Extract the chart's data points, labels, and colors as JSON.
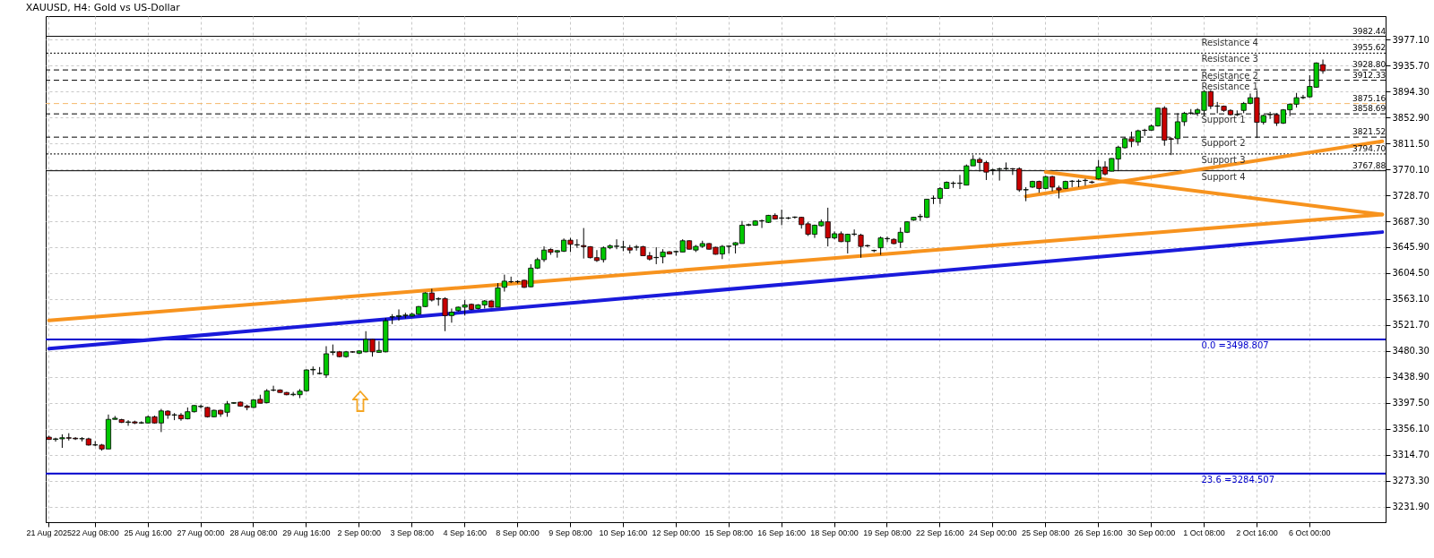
{
  "chart_data": {
    "type": "candlestick",
    "title": "XAUUSD, H4:  Gold vs US-Dollar",
    "categories": [
      "21 Aug 2025",
      null,
      null,
      null,
      null,
      null,
      null,
      "22 Aug 08:00",
      null,
      null,
      null,
      null,
      null,
      null,
      null,
      "25 Aug 16:00",
      null,
      null,
      null,
      null,
      null,
      null,
      null,
      "27 Aug 00:00",
      null,
      null,
      null,
      null,
      null,
      null,
      null,
      "28 Aug 08:00",
      null,
      null,
      null,
      null,
      null,
      null,
      null,
      "29 Aug 16:00",
      null,
      null,
      null,
      null,
      null,
      null,
      null,
      "2 Sep 00:00",
      null,
      null,
      null,
      null,
      null,
      null,
      null,
      "3 Sep 08:00",
      null,
      null,
      null,
      null,
      null,
      null,
      null,
      "4 Sep 16:00",
      null,
      null,
      null,
      null,
      null,
      null,
      null,
      "8 Sep 00:00",
      null,
      null,
      null,
      null,
      null,
      null,
      null,
      "9 Sep 08:00",
      null,
      null,
      null,
      null,
      null,
      null,
      null,
      "10 Sep 16:00",
      null,
      null,
      null,
      null,
      null,
      null,
      null,
      "12 Sep 00:00",
      null,
      null,
      null,
      null,
      null,
      null,
      null,
      "15 Sep 08:00",
      null,
      null,
      null,
      null,
      null,
      null,
      null,
      "16 Sep 16:00",
      null,
      null,
      null,
      null,
      null,
      null,
      null,
      "18 Sep 00:00",
      null,
      null,
      null,
      null,
      null,
      null,
      null,
      "19 Sep 08:00",
      null,
      null,
      null,
      null,
      null,
      null,
      null,
      "22 Sep 16:00",
      null,
      null,
      null,
      null,
      null,
      null,
      null,
      "24 Sep 00:00",
      null,
      null,
      null,
      null,
      null,
      null,
      null,
      "25 Sep 08:00",
      null,
      null,
      null,
      null,
      null,
      null,
      null,
      "26 Sep 16:00",
      null,
      null,
      null,
      null,
      null,
      null,
      null,
      "30 Sep 00:00",
      null,
      null,
      null,
      null,
      null,
      null,
      null,
      "1 Oct 08:00",
      null,
      null,
      null,
      null,
      null,
      null,
      null,
      "2 Oct 16:00",
      null,
      null,
      null,
      null,
      null,
      null,
      null,
      "6 Oct 00:00",
      null,
      null,
      null,
      null,
      null,
      null,
      null,
      null,
      null,
      null,
      null
    ],
    "ohlc": [
      [
        3342.7,
        3345.0,
        3338.2,
        3339.1
      ],
      [
        3339.1,
        3341.8,
        3335.5,
        3340.0
      ],
      [
        3340.0,
        3347.2,
        3325.6,
        3341.8
      ],
      [
        3341.8,
        3349.0,
        3337.3,
        3341.0
      ],
      [
        3341.0,
        3342.7,
        3338.2,
        3340.0
      ],
      [
        3340.0,
        3342.7,
        3335.9,
        3340.4
      ],
      [
        3340.0,
        3341.8,
        3329.2,
        3330.1
      ],
      [
        3330.1,
        3336.4,
        3328.3,
        3330.5
      ],
      [
        3330.1,
        3331.9,
        3321.1,
        3323.8
      ],
      [
        3323.8,
        3378.8,
        3323.8,
        3371.1
      ],
      [
        3371.1,
        3376.5,
        3370.7,
        3372.9
      ],
      [
        3370.7,
        3372.0,
        3365.3,
        3366.2
      ],
      [
        3366.2,
        3369.8,
        3360.8,
        3367.1
      ],
      [
        3367.1,
        3369.0,
        3363.5,
        3365.3
      ],
      [
        3365.3,
        3368.0,
        3364.0,
        3365.8
      ],
      [
        3365.3,
        3377.0,
        3364.5,
        3375.2
      ],
      [
        3375.2,
        3377.0,
        3364.5,
        3365.3
      ],
      [
        3365.3,
        3387.8,
        3350.8,
        3384.6
      ],
      [
        3384.2,
        3385.6,
        3372.0,
        3377.9
      ],
      [
        3377.9,
        3381.1,
        3369.8,
        3378.4
      ],
      [
        3377.9,
        3381.1,
        3368.9,
        3372.0
      ],
      [
        3372.0,
        3390.1,
        3371.1,
        3383.3
      ],
      [
        3383.3,
        3394.0,
        3382.0,
        3393.2
      ],
      [
        3391.4,
        3394.6,
        3388.7,
        3391.9
      ],
      [
        3390.1,
        3391.0,
        3374.0,
        3375.2
      ],
      [
        3375.2,
        3386.5,
        3374.5,
        3385.6
      ],
      [
        3385.6,
        3386.5,
        3375.2,
        3379.7
      ],
      [
        3382.4,
        3400.4,
        3375.2,
        3395.9
      ],
      [
        3396.8,
        3398.6,
        3395.9,
        3397.7
      ],
      [
        3398.6,
        3399.5,
        3391.4,
        3392.3
      ],
      [
        3392.3,
        3394.6,
        3385.6,
        3390.1
      ],
      [
        3390.1,
        3403.1,
        3389.2,
        3402.2
      ],
      [
        3403.1,
        3410.4,
        3396.8,
        3396.8
      ],
      [
        3397.7,
        3419.4,
        3396.8,
        3416.7
      ],
      [
        3417.6,
        3424.8,
        3415.8,
        3418.0
      ],
      [
        3418.0,
        3419.0,
        3413.5,
        3414.0
      ],
      [
        3414.0,
        3414.9,
        3409.5,
        3410.4
      ],
      [
        3410.4,
        3414.9,
        3408.1,
        3411.3
      ],
      [
        3410.4,
        3419.4,
        3405.0,
        3416.2
      ],
      [
        3416.7,
        3451.0,
        3415.0,
        3450.0
      ],
      [
        3450.0,
        3455.5,
        3441.9,
        3450.9
      ],
      [
        3444.2,
        3454.6,
        3442.8,
        3444.6
      ],
      [
        3441.9,
        3487.9,
        3437.4,
        3475.8
      ],
      [
        3478.0,
        3490.6,
        3473.5,
        3478.9
      ],
      [
        3478.9,
        3480.3,
        3470.0,
        3471.2
      ],
      [
        3471.2,
        3480.3,
        3469.5,
        3478.9
      ],
      [
        3478.9,
        3480.0,
        3477.5,
        3478.5
      ],
      [
        3476.7,
        3481.2,
        3475.0,
        3480.3
      ],
      [
        3478.9,
        3511.8,
        3478.0,
        3498.8
      ],
      [
        3498.8,
        3499.5,
        3471.2,
        3478.9
      ],
      [
        3478.0,
        3496.1,
        3477.5,
        3481.2
      ],
      [
        3478.9,
        3533.0,
        3478.0,
        3528.5
      ],
      [
        3534.4,
        3539.0,
        3523.2,
        3534.9
      ],
      [
        3535.0,
        3546.6,
        3528.6,
        3536.7
      ],
      [
        3536.7,
        3541.2,
        3532.2,
        3537.6
      ],
      [
        3536.0,
        3541.2,
        3535.0,
        3539.0
      ],
      [
        3539.0,
        3552.0,
        3538.0,
        3551.1
      ],
      [
        3551.1,
        3574.0,
        3550.2,
        3572.8
      ],
      [
        3572.8,
        3579.5,
        3559.2,
        3561.5
      ],
      [
        3563.0,
        3566.0,
        3552.5,
        3563.8
      ],
      [
        3563.8,
        3566.0,
        3511.9,
        3536.7
      ],
      [
        3536.7,
        3548.0,
        3525.4,
        3542.1
      ],
      [
        3544.8,
        3551.0,
        3543.0,
        3550.2
      ],
      [
        3550.2,
        3561.5,
        3536.7,
        3553.8
      ],
      [
        3554.7,
        3556.0,
        3545.5,
        3546.6
      ],
      [
        3548.0,
        3555.0,
        3546.5,
        3553.8
      ],
      [
        3553.8,
        3561.5,
        3548.0,
        3560.1
      ],
      [
        3560.1,
        3561.0,
        3549.5,
        3550.2
      ],
      [
        3550.2,
        3588.6,
        3550.2,
        3580.9
      ],
      [
        3581.8,
        3602.1,
        3575.0,
        3591.7
      ],
      [
        3591.0,
        3598.9,
        3588.6,
        3590.8
      ],
      [
        3590.8,
        3593.0,
        3588.0,
        3591.2
      ],
      [
        3593.1,
        3594.0,
        3581.0,
        3581.8
      ],
      [
        3582.7,
        3618.8,
        3581.8,
        3612.5
      ],
      [
        3612.5,
        3629.2,
        3611.1,
        3626.0
      ],
      [
        3626.0,
        3647.2,
        3622.4,
        3641.3
      ],
      [
        3642.2,
        3644.0,
        3633.7,
        3637.7
      ],
      [
        3638.2,
        3641.3,
        3629.2,
        3640.4
      ],
      [
        3639.5,
        3659.8,
        3638.2,
        3657.1
      ],
      [
        3657.1,
        3660.7,
        3638.2,
        3650.4
      ],
      [
        3649.4,
        3658.5,
        3644.9,
        3649.9
      ],
      [
        3648.5,
        3676.5,
        3627.8,
        3646.7
      ],
      [
        3646.7,
        3647.5,
        3628.0,
        3629.2
      ],
      [
        3629.2,
        3641.3,
        3622.4,
        3624.6
      ],
      [
        3626.0,
        3647.2,
        3621.5,
        3644.9
      ],
      [
        3644.9,
        3650.4,
        3642.7,
        3648.1
      ],
      [
        3647.2,
        3658.5,
        3642.7,
        3647.6
      ],
      [
        3645.8,
        3656.2,
        3639.5,
        3646.2
      ],
      [
        3644.9,
        3649.4,
        3635.9,
        3641.3
      ],
      [
        3645.8,
        3649.4,
        3640.4,
        3646.2
      ],
      [
        3646.7,
        3648.0,
        3632.0,
        3632.3
      ],
      [
        3632.3,
        3638.2,
        3624.6,
        3626.9
      ],
      [
        3629.2,
        3645.8,
        3618.8,
        3629.6
      ],
      [
        3630.5,
        3642.7,
        3620.1,
        3638.2
      ],
      [
        3638.6,
        3639.5,
        3634.5,
        3635.0
      ],
      [
        3638.6,
        3640.4,
        3632.3,
        3639.0
      ],
      [
        3638.2,
        3658.5,
        3638.2,
        3656.2
      ],
      [
        3656.2,
        3657.0,
        3642.0,
        3642.7
      ],
      [
        3641.3,
        3649.4,
        3638.2,
        3647.2
      ],
      [
        3647.2,
        3656.2,
        3644.9,
        3651.7
      ],
      [
        3651.7,
        3652.5,
        3642.0,
        3642.7
      ],
      [
        3645.8,
        3646.5,
        3634.0,
        3634.6
      ],
      [
        3635.0,
        3649.4,
        3626.9,
        3647.2
      ],
      [
        3647.2,
        3648.5,
        3635.9,
        3647.6
      ],
      [
        3649.4,
        3653.9,
        3635.9,
        3653.0
      ],
      [
        3651.7,
        3687.8,
        3651.7,
        3681.0
      ],
      [
        3681.0,
        3683.5,
        3679.5,
        3681.9
      ],
      [
        3681.0,
        3689.0,
        3680.0,
        3687.7
      ],
      [
        3687.7,
        3690.0,
        3676.5,
        3688.2
      ],
      [
        3685.5,
        3697.5,
        3684.5,
        3696.7
      ],
      [
        3696.7,
        3699.9,
        3690.0,
        3690.9
      ],
      [
        3692.2,
        3705.8,
        3681.0,
        3692.6
      ],
      [
        3692.2,
        3694.0,
        3690.5,
        3692.6
      ],
      [
        3693.6,
        3695.0,
        3691.5,
        3694.0
      ],
      [
        3693.6,
        3694.5,
        3675.5,
        3681.9
      ],
      [
        3683.2,
        3686.4,
        3663.8,
        3666.5
      ],
      [
        3666.5,
        3681.9,
        3660.7,
        3681.0
      ],
      [
        3680.1,
        3690.0,
        3678.7,
        3686.4
      ],
      [
        3686.4,
        3708.9,
        3647.1,
        3660.7
      ],
      [
        3660.7,
        3671.0,
        3658.4,
        3667.4
      ],
      [
        3667.4,
        3671.0,
        3653.9,
        3654.8
      ],
      [
        3654.8,
        3667.4,
        3635.9,
        3666.5
      ],
      [
        3666.5,
        3674.2,
        3663.8,
        3666.9
      ],
      [
        3665.2,
        3667.4,
        3629.1,
        3647.1
      ],
      [
        3648.5,
        3650.0,
        3646.0,
        3648.0
      ],
      [
        3640.4,
        3642.0,
        3638.0,
        3640.8
      ],
      [
        3644.9,
        3662.9,
        3633.6,
        3660.7
      ],
      [
        3659.3,
        3662.9,
        3653.9,
        3659.8
      ],
      [
        3658.4,
        3660.0,
        3650.5,
        3651.6
      ],
      [
        3653.9,
        3677.4,
        3644.9,
        3669.7
      ],
      [
        3669.7,
        3687.5,
        3668.5,
        3686.4
      ],
      [
        3689.1,
        3694.5,
        3688.0,
        3693.6
      ],
      [
        3694.5,
        3699.0,
        3687.7,
        3695.0
      ],
      [
        3693.6,
        3723.0,
        3692.5,
        3722.5
      ],
      [
        3723.8,
        3728.3,
        3714.8,
        3724.2
      ],
      [
        3723.8,
        3741.8,
        3714.8,
        3739.6
      ],
      [
        3739.6,
        3750.9,
        3739.6,
        3749.5
      ],
      [
        3747.7,
        3750.9,
        3740.5,
        3748.1
      ],
      [
        3747.7,
        3761.2,
        3738.7,
        3748.2
      ],
      [
        3745.0,
        3777.9,
        3745.0,
        3775.7
      ],
      [
        3775.7,
        3792.8,
        3775.7,
        3786.0
      ],
      [
        3786.0,
        3789.2,
        3766.7,
        3781.1
      ],
      [
        3781.1,
        3783.8,
        3753.1,
        3765.7
      ],
      [
        3768.9,
        3771.2,
        3761.2,
        3769.3
      ],
      [
        3770.3,
        3773.0,
        3752.2,
        3770.8
      ],
      [
        3771.2,
        3781.1,
        3768.9,
        3771.6
      ],
      [
        3771.2,
        3772.1,
        3761.2,
        3770.8
      ],
      [
        3771.2,
        3773.4,
        3734.2,
        3737.3
      ],
      [
        3737.3,
        3741.8,
        3719.3,
        3737.8
      ],
      [
        3741.8,
        3752.0,
        3740.5,
        3750.9
      ],
      [
        3750.9,
        3752.2,
        3732.8,
        3739.6
      ],
      [
        3739.6,
        3760.0,
        3738.5,
        3758.5
      ],
      [
        3758.5,
        3759.9,
        3735.1,
        3741.8
      ],
      [
        3740.5,
        3744.1,
        3723.8,
        3737.3
      ],
      [
        3739.6,
        3752.0,
        3738.5,
        3750.9
      ],
      [
        3750.9,
        3753.1,
        3741.8,
        3751.3
      ],
      [
        3750.9,
        3754.0,
        3741.8,
        3751.3
      ],
      [
        3752.2,
        3755.4,
        3744.1,
        3752.6
      ],
      [
        3750.0,
        3752.0,
        3747.5,
        3749.2
      ],
      [
        3755.0,
        3785.2,
        3753.7,
        3774.0
      ],
      [
        3774.0,
        3783.0,
        3760.4,
        3762.7
      ],
      [
        3767.2,
        3788.0,
        3767.0,
        3787.5
      ],
      [
        3786.6,
        3807.8,
        3767.2,
        3805.5
      ],
      [
        3804.6,
        3821.3,
        3803.3,
        3819.1
      ],
      [
        3819.1,
        3830.3,
        3805.5,
        3814.6
      ],
      [
        3813.7,
        3833.5,
        3807.8,
        3831.7
      ],
      [
        3832.6,
        3834.9,
        3823.6,
        3832.2
      ],
      [
        3832.6,
        3841.6,
        3831.7,
        3839.4
      ],
      [
        3839.4,
        3868.5,
        3838.5,
        3867.8
      ],
      [
        3867.8,
        3870.9,
        3807.8,
        3816.8
      ],
      [
        3819.1,
        3821.3,
        3792.9,
        3818.0
      ],
      [
        3819.1,
        3859.7,
        3810.1,
        3846.1
      ],
      [
        3846.1,
        3861.9,
        3839.4,
        3859.7
      ],
      [
        3859.7,
        3866.4,
        3857.4,
        3860.2
      ],
      [
        3859.7,
        3867.8,
        3855.2,
        3865.1
      ],
      [
        3864.2,
        3896.6,
        3855.2,
        3894.4
      ],
      [
        3894.4,
        3896.6,
        3866.4,
        3870.9
      ],
      [
        3870.9,
        3877.7,
        3859.7,
        3871.4
      ],
      [
        3870.9,
        3872.0,
        3862.0,
        3864.2
      ],
      [
        3864.2,
        3866.0,
        3856.0,
        3857.4
      ],
      [
        3857.4,
        3864.2,
        3855.2,
        3857.9
      ],
      [
        3864.2,
        3877.7,
        3859.7,
        3875.4
      ],
      [
        3875.4,
        3891.2,
        3874.0,
        3884.5
      ],
      [
        3884.5,
        3896.6,
        3820.0,
        3845.2
      ],
      [
        3845.2,
        3857.4,
        3841.6,
        3856.1
      ],
      [
        3857.4,
        3861.9,
        3850.6,
        3857.9
      ],
      [
        3857.4,
        3859.7,
        3839.4,
        3843.9
      ],
      [
        3843.9,
        3866.4,
        3842.5,
        3865.1
      ],
      [
        3865.1,
        3875.4,
        3855.2,
        3874.1
      ],
      [
        3874.1,
        3892.1,
        3868.7,
        3884.5
      ],
      [
        3884.5,
        3889.0,
        3882.2,
        3885.0
      ],
      [
        3885.8,
        3920.5,
        3884.5,
        3902.5
      ],
      [
        3901.2,
        3940.8,
        3900.3,
        3939.9
      ],
      [
        3937.2,
        3945.4,
        3922.8,
        3927.3
      ],
      null,
      null,
      null,
      null,
      null,
      null,
      null,
      null,
      null
    ],
    "series": [
      {
        "type": "line",
        "color": "#f7931e",
        "values": [
          3529,
          null,
          null,
          null,
          null,
          null,
          null,
          null,
          null,
          null,
          null,
          null,
          null,
          null,
          null,
          null,
          null,
          null,
          null,
          null,
          null,
          null,
          null,
          null,
          null,
          null,
          null,
          null,
          null,
          null,
          null,
          null,
          null,
          null,
          null,
          null,
          null,
          null,
          null,
          null,
          null,
          null,
          null,
          null,
          null,
          null,
          null,
          null,
          null,
          null,
          null,
          null,
          null,
          null,
          null,
          null,
          null,
          null,
          null,
          null,
          null,
          null,
          null,
          null,
          null,
          null,
          null,
          null,
          null,
          null,
          null,
          null,
          null,
          null,
          null,
          null,
          null,
          null,
          null,
          null,
          null,
          null,
          null,
          null,
          null,
          null,
          null,
          null,
          null,
          null,
          null,
          null,
          null,
          null,
          null,
          null,
          null,
          null,
          null,
          null,
          null,
          null,
          null,
          null,
          null,
          null,
          null,
          null,
          null,
          null,
          null,
          null,
          null,
          null,
          null,
          null,
          null,
          null,
          null,
          null,
          null,
          null,
          null,
          null,
          null,
          null,
          null,
          null,
          null,
          null,
          null,
          null,
          null,
          null,
          null,
          null,
          null,
          null,
          null,
          null,
          null,
          null,
          null,
          null,
          null,
          null,
          null,
          null,
          null,
          null,
          null,
          null,
          null,
          null,
          null,
          null,
          null,
          null,
          null,
          null,
          null,
          null,
          null,
          null,
          null,
          null,
          null,
          null,
          null,
          null,
          null,
          null,
          null,
          null,
          null,
          null,
          null,
          null,
          null,
          null,
          null,
          null,
          null,
          null,
          null,
          null,
          null,
          null,
          null,
          null,
          null,
          null,
          null,
          null,
          null,
          null,
          null,
          null,
          null,
          null,
          null,
          null,
          3698
        ]
      },
      {
        "type": "line",
        "color": "#1a1adb",
        "values": [
          3484,
          null,
          null,
          null,
          null,
          null,
          null,
          null,
          null,
          null,
          null,
          null,
          null,
          null,
          null,
          null,
          null,
          null,
          null,
          null,
          null,
          null,
          null,
          null,
          null,
          null,
          null,
          null,
          null,
          null,
          null,
          null,
          null,
          null,
          null,
          null,
          null,
          null,
          null,
          null,
          null,
          null,
          null,
          null,
          null,
          null,
          null,
          null,
          null,
          null,
          null,
          null,
          null,
          null,
          null,
          null,
          null,
          null,
          null,
          null,
          null,
          null,
          null,
          null,
          null,
          null,
          null,
          null,
          null,
          null,
          null,
          null,
          null,
          null,
          null,
          null,
          null,
          null,
          null,
          null,
          null,
          null,
          null,
          null,
          null,
          null,
          null,
          null,
          null,
          null,
          null,
          null,
          null,
          null,
          null,
          null,
          null,
          null,
          null,
          null,
          null,
          null,
          null,
          null,
          null,
          null,
          null,
          null,
          null,
          null,
          null,
          null,
          null,
          null,
          null,
          null,
          null,
          null,
          null,
          null,
          null,
          null,
          null,
          null,
          null,
          null,
          null,
          null,
          null,
          null,
          null,
          null,
          null,
          null,
          null,
          null,
          null,
          null,
          null,
          null,
          null,
          null,
          null,
          null,
          null,
          null,
          null,
          null,
          null,
          null,
          null,
          null,
          null,
          null,
          null,
          null,
          null,
          null,
          null,
          null,
          null,
          null,
          null,
          null,
          null,
          null,
          null,
          null,
          null,
          null,
          null,
          null,
          null,
          null,
          null,
          null,
          null,
          null,
          null,
          null,
          null,
          null,
          null,
          null,
          null,
          null,
          null,
          null,
          null,
          null,
          null,
          null,
          null,
          null,
          null,
          null,
          null,
          null,
          null,
          null,
          null,
          null,
          3670
        ]
      },
      {
        "type": "line",
        "color": "#f7931e",
        "values": [
          null,
          null,
          null,
          null,
          null,
          null,
          null,
          null,
          null,
          null,
          null,
          null,
          null,
          null,
          null,
          null,
          null,
          null,
          null,
          null,
          null,
          null,
          null,
          null,
          null,
          null,
          null,
          null,
          null,
          null,
          null,
          null,
          null,
          null,
          null,
          null,
          null,
          null,
          null,
          null,
          null,
          null,
          null,
          null,
          null,
          null,
          null,
          null,
          null,
          null,
          null,
          null,
          null,
          null,
          null,
          null,
          null,
          null,
          null,
          null,
          null,
          null,
          null,
          null,
          null,
          null,
          null,
          null,
          null,
          null,
          null,
          null,
          null,
          null,
          null,
          null,
          null,
          null,
          null,
          null,
          null,
          null,
          null,
          null,
          null,
          null,
          null,
          null,
          null,
          null,
          null,
          null,
          null,
          null,
          null,
          null,
          null,
          null,
          null,
          null,
          null,
          null,
          null,
          null,
          null,
          null,
          null,
          null,
          null,
          null,
          null,
          null,
          null,
          null,
          null,
          null,
          null,
          null,
          null,
          null,
          null,
          null,
          null,
          null,
          null,
          null,
          null,
          null,
          null,
          null,
          null,
          null,
          null,
          null,
          null,
          null,
          null,
          null,
          null,
          null,
          null,
          null,
          null,
          null,
          null,
          null,
          null,
          null,
          3727,
          null,
          null,
          null,
          null,
          null,
          null,
          null,
          null,
          null,
          null,
          null,
          null,
          null,
          null,
          null,
          null,
          null,
          null,
          null,
          null,
          null,
          null,
          null,
          null,
          null,
          null,
          null,
          null,
          null,
          null,
          null,
          null,
          null,
          null,
          null,
          null,
          null,
          null,
          null,
          null,
          null,
          null,
          null,
          null,
          null,
          null,
          null,
          null,
          null,
          null,
          null,
          null,
          null,
          3815
        ]
      },
      {
        "type": "line",
        "color": "#f7931e",
        "values": [
          null,
          null,
          null,
          null,
          null,
          null,
          null,
          null,
          null,
          null,
          null,
          null,
          null,
          null,
          null,
          null,
          null,
          null,
          null,
          null,
          null,
          null,
          null,
          null,
          null,
          null,
          null,
          null,
          null,
          null,
          null,
          null,
          null,
          null,
          null,
          null,
          null,
          null,
          null,
          null,
          null,
          null,
          null,
          null,
          null,
          null,
          null,
          null,
          null,
          null,
          null,
          null,
          null,
          null,
          null,
          null,
          null,
          null,
          null,
          null,
          null,
          null,
          null,
          null,
          null,
          null,
          null,
          null,
          null,
          null,
          null,
          null,
          null,
          null,
          null,
          null,
          null,
          null,
          null,
          null,
          null,
          null,
          null,
          null,
          null,
          null,
          null,
          null,
          null,
          null,
          null,
          null,
          null,
          null,
          null,
          null,
          null,
          null,
          null,
          null,
          null,
          null,
          null,
          null,
          null,
          null,
          null,
          null,
          null,
          null,
          null,
          null,
          null,
          null,
          null,
          null,
          null,
          null,
          null,
          null,
          null,
          null,
          null,
          null,
          null,
          null,
          null,
          null,
          null,
          null,
          null,
          null,
          null,
          null,
          null,
          null,
          null,
          null,
          null,
          null,
          null,
          null,
          null,
          null,
          null,
          null,
          null,
          null,
          null,
          null,
          null,
          3766,
          null,
          null,
          null,
          null,
          null,
          null,
          null,
          null,
          null,
          null,
          null,
          null,
          null,
          null,
          null,
          null,
          null,
          null,
          null,
          null,
          null,
          null,
          null,
          null,
          null,
          null,
          null,
          null,
          null,
          null,
          null,
          null,
          null,
          null,
          null,
          null,
          null,
          null,
          null,
          null,
          null,
          null,
          null,
          null,
          null,
          null,
          null,
          null,
          null,
          null,
          3698
        ]
      }
    ],
    "ylim": [
      3207.0,
      4014.7
    ],
    "yticks": [
      {
        "value": 3231.9,
        "label": "3231.90"
      },
      {
        "value": 3273.3,
        "label": "3273.30"
      },
      {
        "value": 3314.7,
        "label": "3314.70"
      },
      {
        "value": 3356.1,
        "label": "3356.10"
      },
      {
        "value": 3397.5,
        "label": "3397.50"
      },
      {
        "value": 3438.9,
        "label": "3438.90"
      },
      {
        "value": 3480.3,
        "label": "3480.30"
      },
      {
        "value": 3521.7,
        "label": "3521.70"
      },
      {
        "value": 3563.1,
        "label": "3563.10"
      },
      {
        "value": 3604.5,
        "label": "3604.50"
      },
      {
        "value": 3645.9,
        "label": "3645.90"
      },
      {
        "value": 3687.3,
        "label": "3687.30"
      },
      {
        "value": 3728.7,
        "label": "3728.70"
      },
      {
        "value": 3770.1,
        "label": "3770.10"
      },
      {
        "value": 3811.5,
        "label": "3811.50"
      },
      {
        "value": 3852.9,
        "label": "3852.90"
      },
      {
        "value": 3894.3,
        "label": "3894.30"
      },
      {
        "value": 3935.7,
        "label": "3935.70"
      },
      {
        "value": 3977.1,
        "label": "3977.10"
      }
    ],
    "grid": true,
    "ref_lines": [
      {
        "axis": "y",
        "value": 3982.44,
        "label": "Resistance 4",
        "color": "#000000",
        "line_style": "solid"
      },
      {
        "axis": "y",
        "value": 3955.62,
        "label": "Resistance 3",
        "color": "#000000",
        "line_style": "dotted"
      },
      {
        "axis": "y",
        "value": 3928.8,
        "label": "Resistance 2",
        "color": "#000000",
        "line_style": "dashed"
      },
      {
        "axis": "y",
        "value": 3912.33,
        "label": "Resistance 1",
        "color": "#000000",
        "line_style": "dashed"
      },
      {
        "axis": "y",
        "value": 3875.16,
        "label": null,
        "color": "#f5b96b",
        "line_style": "dashed"
      },
      {
        "axis": "y",
        "value": 3858.69,
        "label": "Support 1",
        "color": "#000000",
        "line_style": "dashed"
      },
      {
        "axis": "y",
        "value": 3821.52,
        "label": "Support 2",
        "color": "#000000",
        "line_style": "dashed"
      },
      {
        "axis": "y",
        "value": 3794.7,
        "label": "Support 3",
        "color": "#000000",
        "line_style": "dotted"
      },
      {
        "axis": "y",
        "value": 3767.88,
        "label": "Support 4",
        "color": "#000000",
        "line_style": "solid"
      },
      {
        "axis": "y",
        "value": 3498.807,
        "label": "0.0 =3498.807",
        "color": "#0000cc",
        "line_style": "solid"
      },
      {
        "axis": "y",
        "value": 3284.507,
        "label": "23.6 =3284.507",
        "color": "#0000cc",
        "line_style": "solid"
      }
    ],
    "annotations": [
      {
        "text": "3982.44",
        "y": 3982.44
      },
      {
        "text": "3955.62",
        "y": 3955.62
      },
      {
        "text": "3928.80",
        "y": 3928.8
      },
      {
        "text": "3912.33",
        "y": 3912.33
      },
      {
        "text": "3875.16",
        "y": 3875.16
      },
      {
        "text": "3858.69",
        "y": 3858.69
      },
      {
        "text": "3821.52",
        "y": 3821.52
      },
      {
        "text": "3794.70",
        "y": 3794.7
      },
      {
        "text": "3767.88",
        "y": 3767.88
      }
    ]
  }
}
